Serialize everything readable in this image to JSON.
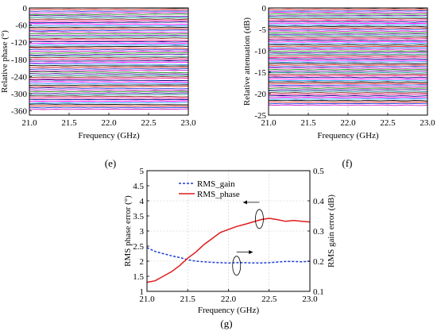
{
  "figure_labels": {
    "e": "(e)",
    "f": "(f)",
    "g": "(g)"
  },
  "chart_data": [
    {
      "id": "e",
      "type": "line",
      "description_of_series": "phase states",
      "xlabel": "Frequency  (GHz)",
      "ylabel": "Relative phase (°)",
      "xlim": [
        21.0,
        23.0
      ],
      "ylim": [
        -375,
        0
      ],
      "xticks": [
        "21.0",
        "21.5",
        "22.0",
        "22.5",
        "23.0"
      ],
      "yticks": [
        "0",
        "-60",
        "-120",
        "-180",
        "-240",
        "-300",
        "-360"
      ],
      "xtick_values": [
        21.0,
        21.5,
        22.0,
        22.5,
        23.0
      ],
      "ytick_values": [
        0,
        -60,
        -120,
        -180,
        -240,
        -300,
        -360
      ],
      "x": [
        21.0,
        21.5,
        22.0,
        22.5,
        23.0
      ],
      "series_count": 64,
      "series_start": 0,
      "series_step": -5.625,
      "grid": false
    },
    {
      "id": "f",
      "type": "line",
      "xlabel": "Frequency  (GHz)",
      "ylabel": "Relative attenuation (dB)",
      "xlim": [
        21.0,
        23.0
      ],
      "ylim": [
        -25,
        0
      ],
      "xticks": [
        "21.0",
        "21.5",
        "22.0",
        "22.5",
        "23.0"
      ],
      "yticks": [
        "0",
        "-5",
        "-10",
        "-15",
        "-20",
        "-25"
      ],
      "xtick_values": [
        21.0,
        21.5,
        22.0,
        22.5,
        23.0
      ],
      "ytick_values": [
        0,
        -5,
        -10,
        -15,
        -20,
        -25
      ],
      "x": [
        21.0,
        21.5,
        22.0,
        22.5,
        23.0
      ],
      "series_count": 64,
      "series_start": 0,
      "series_step": -0.36,
      "grid": true
    },
    {
      "id": "g",
      "type": "line",
      "xlabel": "Frequency  (GHz)",
      "ylabel": "RMS phase error (°)",
      "y2label": "RMS gain error (dB)",
      "xlim": [
        21.0,
        23.0
      ],
      "ylim": [
        1,
        5
      ],
      "y2lim": [
        0.1,
        0.5
      ],
      "xticks": [
        "21.0",
        "21.5",
        "22.0",
        "22.5",
        "23.0"
      ],
      "yticks": [
        "1",
        "1.5",
        "2",
        "2.5",
        "3",
        "3.5",
        "4",
        "4.5",
        "5"
      ],
      "y2ticks": [
        "0.1",
        "0.2",
        "0.3",
        "0.4",
        "0.5"
      ],
      "xtick_values": [
        21.0,
        21.5,
        22.0,
        22.5,
        23.0
      ],
      "ytick_values": [
        1,
        1.5,
        2,
        2.5,
        3,
        3.5,
        4,
        4.5,
        5
      ],
      "y2tick_values": [
        0.1,
        0.2,
        0.3,
        0.4,
        0.5
      ],
      "legend_position": "top-left",
      "grid": true,
      "series": [
        {
          "name": "RMS_gain",
          "axis": "right",
          "color": "#1f3fd6",
          "style": "dashed",
          "x": [
            21.0,
            21.1,
            21.2,
            21.3,
            21.4,
            21.5,
            21.6,
            21.7,
            21.8,
            21.9,
            22.0,
            22.1,
            22.2,
            22.3,
            22.4,
            22.5,
            22.6,
            22.7,
            22.8,
            22.9,
            23.0
          ],
          "values": [
            0.245,
            0.232,
            0.225,
            0.218,
            0.212,
            0.205,
            0.2,
            0.198,
            0.196,
            0.195,
            0.194,
            0.195,
            0.195,
            0.194,
            0.194,
            0.195,
            0.197,
            0.199,
            0.199,
            0.198,
            0.2
          ]
        },
        {
          "name": "RMS_phase",
          "axis": "left",
          "color": "#e01b1b",
          "style": "solid",
          "x": [
            21.0,
            21.1,
            21.2,
            21.3,
            21.4,
            21.5,
            21.6,
            21.7,
            21.8,
            21.9,
            22.0,
            22.1,
            22.2,
            22.3,
            22.4,
            22.5,
            22.6,
            22.7,
            22.8,
            22.9,
            23.0
          ],
          "values": [
            1.3,
            1.35,
            1.5,
            1.65,
            1.85,
            2.1,
            2.3,
            2.55,
            2.75,
            2.95,
            3.05,
            3.15,
            3.22,
            3.3,
            3.38,
            3.42,
            3.38,
            3.32,
            3.35,
            3.32,
            3.3
          ]
        }
      ]
    }
  ],
  "colors": [
    "#000000",
    "#e01b1b",
    "#1f3fd6",
    "#d018c8",
    "#1a8f1a",
    "#6a0fb0",
    "#0f8f8f",
    "#8b1c1c",
    "#ff1493",
    "#00008b",
    "#ff00ff",
    "#1e90ff"
  ]
}
